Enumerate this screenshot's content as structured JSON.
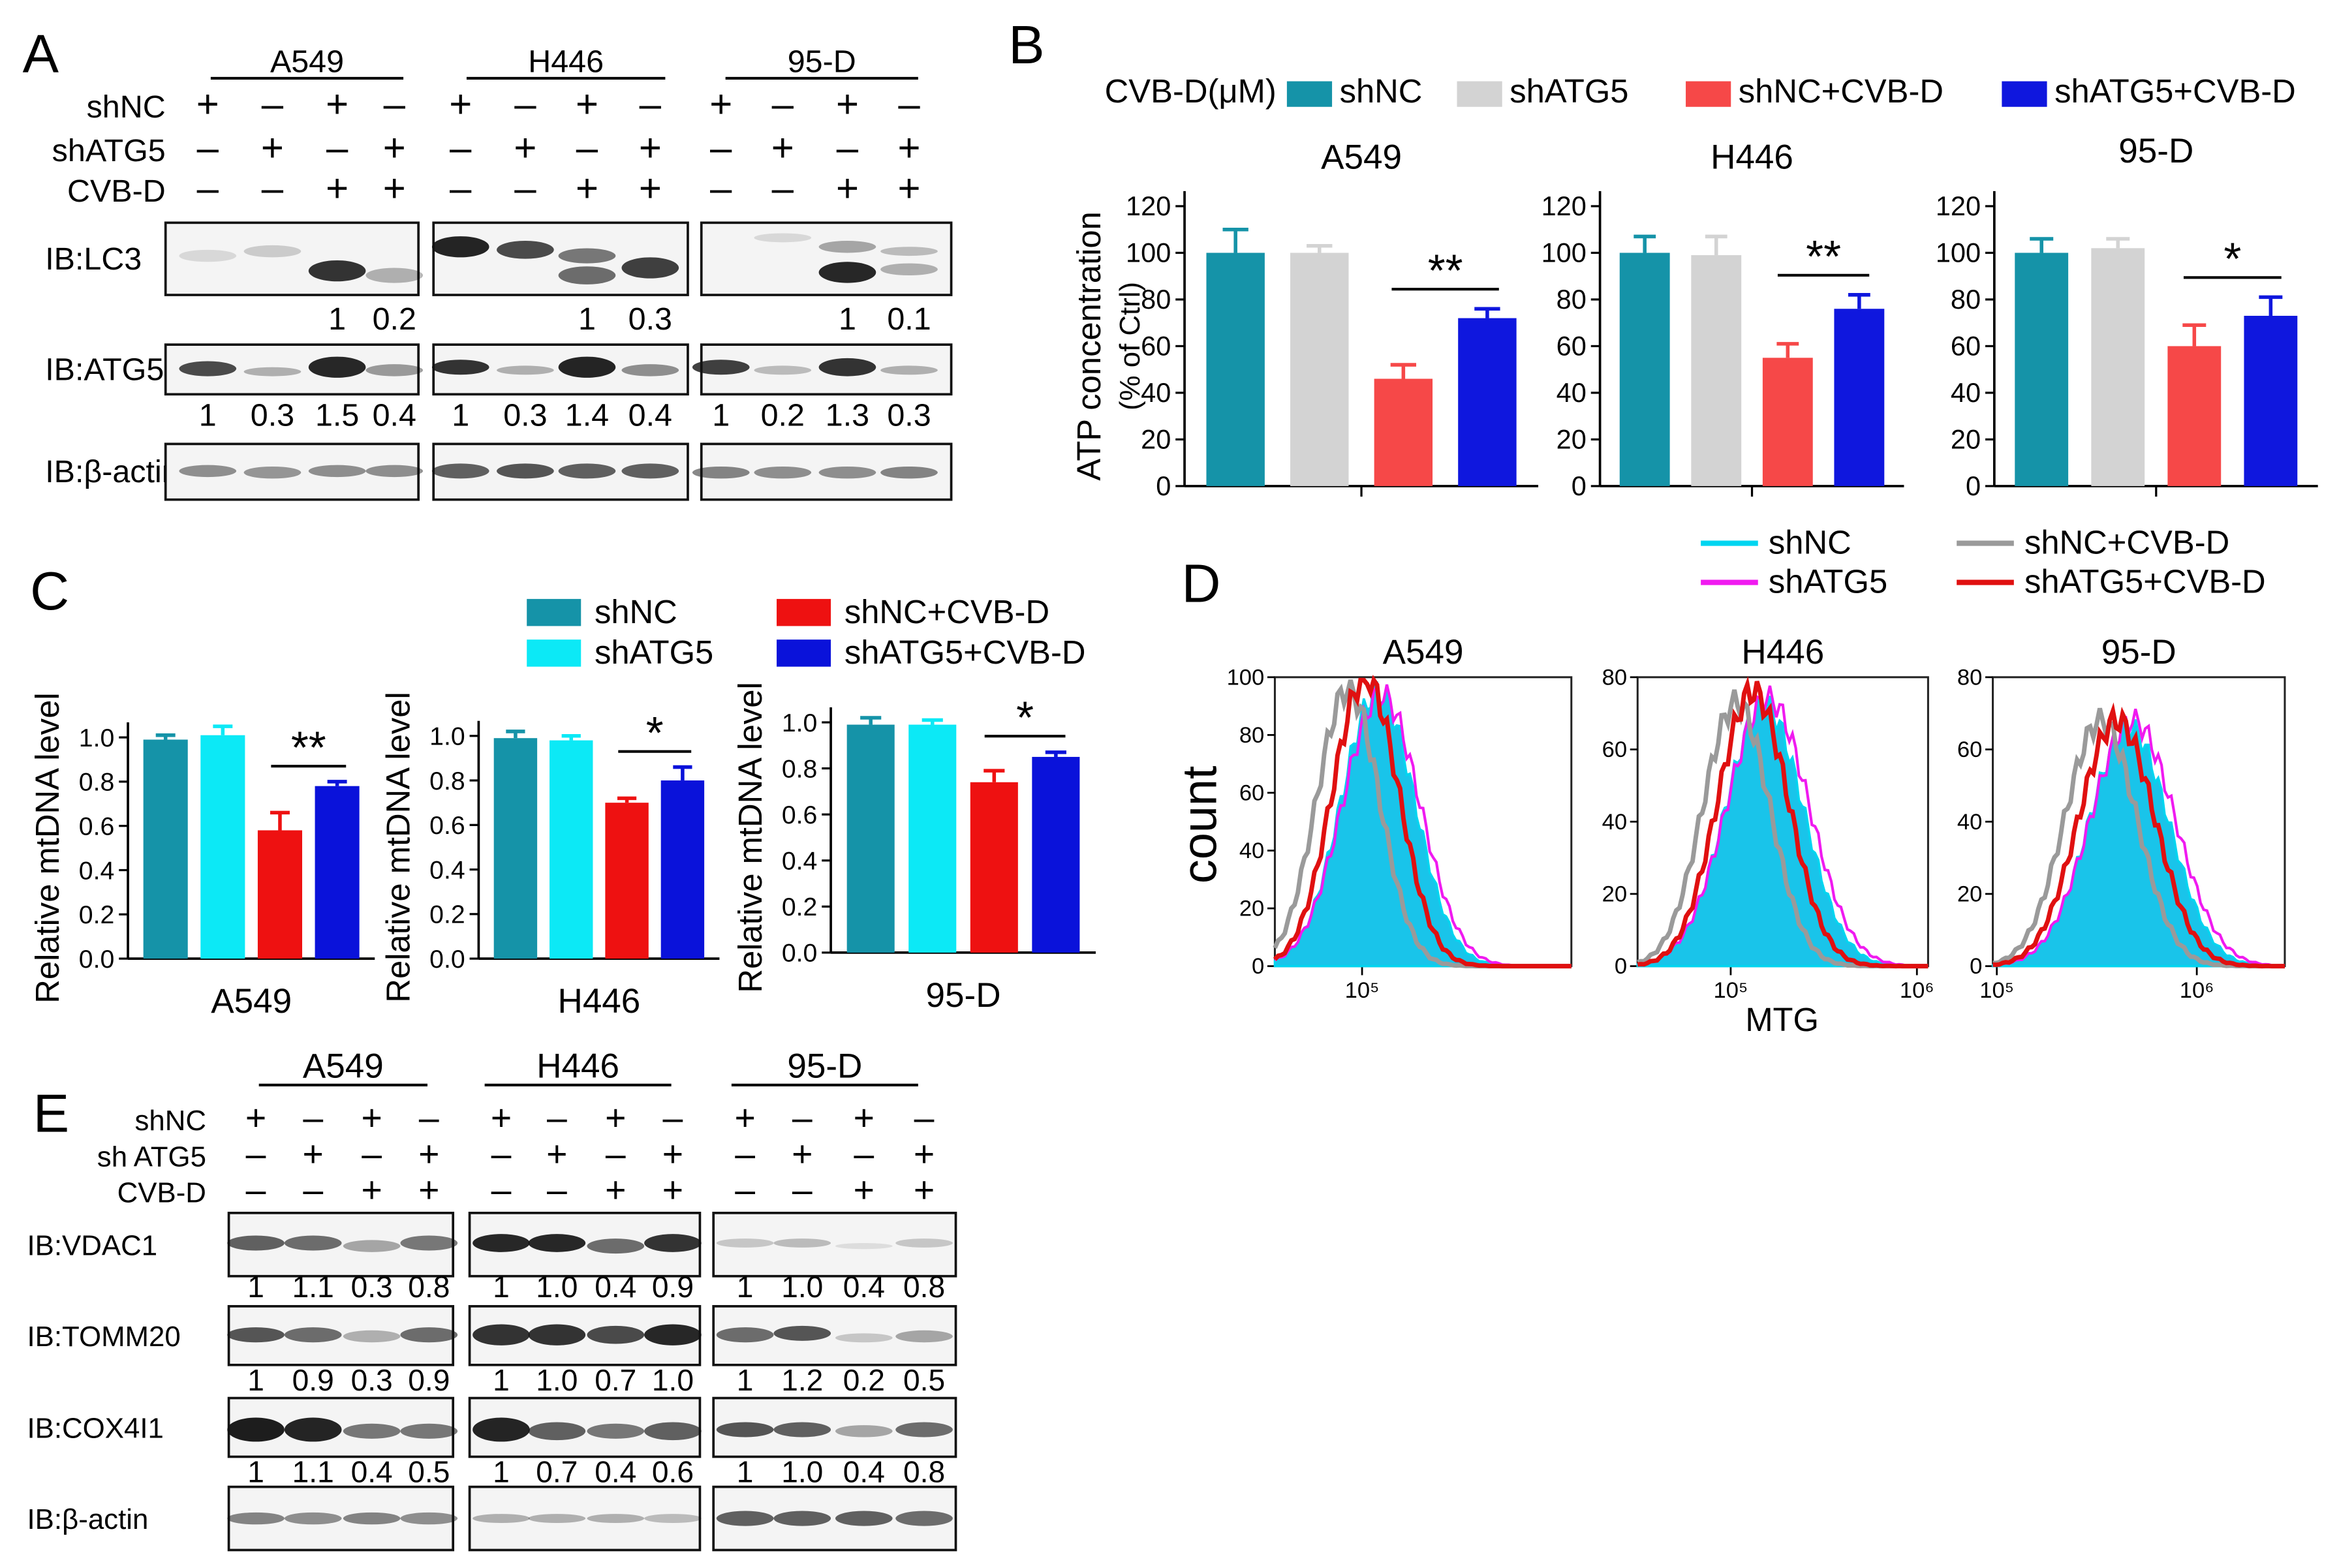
{
  "panels": {
    "A": {
      "letter": "A",
      "cells": [
        "A549",
        "H446",
        "95-D"
      ],
      "conditions": [
        {
          "label": "shNC",
          "signs": [
            "+",
            "–",
            "+",
            "–"
          ]
        },
        {
          "label": "shATG5",
          "signs": [
            "–",
            "+",
            "–",
            "+"
          ]
        },
        {
          "label": "CVB-D",
          "signs": [
            "–",
            "–",
            "+",
            "+"
          ]
        }
      ],
      "blots": [
        {
          "label": "IB:LC3",
          "values": [
            [
              "",
              "",
              "1",
              "0.2"
            ],
            [
              "",
              "",
              "1",
              "0.3"
            ],
            [
              "",
              "",
              "1",
              "0.1"
            ]
          ]
        },
        {
          "label": "IB:ATG5",
          "values": [
            [
              "1",
              "0.3",
              "1.5",
              "0.4"
            ],
            [
              "1",
              "0.3",
              "1.4",
              "0.4"
            ],
            [
              "1",
              "0.2",
              "1.3",
              "0.3"
            ]
          ]
        },
        {
          "label": "IB:β-actin",
          "values": [
            [
              "",
              "",
              "",
              ""
            ],
            [
              "",
              "",
              "",
              ""
            ],
            [
              "",
              "",
              "",
              ""
            ]
          ]
        }
      ]
    },
    "E": {
      "letter": "E",
      "cells": [
        "A549",
        "H446",
        "95-D"
      ],
      "conditions": [
        {
          "label": "shNC",
          "signs": [
            "+",
            "–",
            "+",
            "–"
          ]
        },
        {
          "label": "sh ATG5",
          "signs": [
            "–",
            "+",
            "–",
            "+"
          ]
        },
        {
          "label": "CVB-D",
          "signs": [
            "–",
            "–",
            "+",
            "+"
          ]
        }
      ],
      "blots": [
        {
          "label": "IB:VDAC1",
          "values": [
            [
              "1",
              "1.1",
              "0.3",
              "0.8"
            ],
            [
              "1",
              "1.0",
              "0.4",
              "0.9"
            ],
            [
              "1",
              "1.0",
              "0.4",
              "0.8"
            ]
          ]
        },
        {
          "label": "IB:TOMM20",
          "values": [
            [
              "1",
              "0.9",
              "0.3",
              "0.9"
            ],
            [
              "1",
              "1.0",
              "0.7",
              "1.0"
            ],
            [
              "1",
              "1.2",
              "0.2",
              "0.5"
            ]
          ]
        },
        {
          "label": "IB:COX4I1",
          "values": [
            [
              "1",
              "1.1",
              "0.4",
              "0.5"
            ],
            [
              "1",
              "0.7",
              "0.4",
              "0.6"
            ],
            [
              "1",
              "1.0",
              "0.4",
              "0.8"
            ]
          ]
        },
        {
          "label": "IB:β-actin",
          "values": [
            [
              "",
              "",
              "",
              ""
            ],
            [
              "",
              "",
              "",
              ""
            ],
            [
              "",
              "",
              "",
              ""
            ]
          ]
        }
      ]
    }
  },
  "chart_data": [
    {
      "panel": "B",
      "type": "bar",
      "title": "ATP concentration",
      "legend_prefix": "CVB-D(μM)",
      "series_names": [
        "shNC",
        "shATG5",
        "shNC+CVB-D",
        "shATG5+CVB-D"
      ],
      "colors": [
        "#1593a8",
        "#d3d3d3",
        "#f64848",
        "#0f17de"
      ],
      "ylabel": "ATP concentration",
      "ylabel2": "(% of Ctrl)",
      "ylim": [
        0,
        120
      ],
      "yticks": [
        "0",
        "20",
        "40",
        "60",
        "80",
        "100",
        "120"
      ],
      "subplots": [
        {
          "title": "A549",
          "values": [
            100,
            100,
            46,
            72
          ],
          "errors": [
            10,
            3,
            6,
            4
          ],
          "sig": "**"
        },
        {
          "title": "H446",
          "values": [
            100,
            99,
            55,
            76
          ],
          "errors": [
            7,
            8,
            6,
            6
          ],
          "sig": "**"
        },
        {
          "title": "95-D",
          "values": [
            100,
            102,
            60,
            73
          ],
          "errors": [
            6,
            4,
            9,
            8
          ],
          "sig": "*"
        }
      ]
    },
    {
      "panel": "C",
      "type": "bar",
      "series_names": [
        "shNC",
        "shATG5",
        "shNC+CVB-D",
        "shATG5+CVB-D"
      ],
      "colors": [
        "#1593a8",
        "#0ce9f6",
        "#ee1111",
        "#0a12da"
      ],
      "ylabel": "Relative mtDNA level",
      "ylim": [
        0,
        1.0
      ],
      "yticks": [
        "0.0",
        "0.2",
        "0.4",
        "0.6",
        "0.8",
        "1.0"
      ],
      "subplots": [
        {
          "xlabel": "A549",
          "values": [
            0.99,
            1.01,
            0.58,
            0.78
          ],
          "errors": [
            0.02,
            0.04,
            0.08,
            0.02
          ],
          "sig": "**"
        },
        {
          "xlabel": "H446",
          "values": [
            0.99,
            0.98,
            0.7,
            0.8
          ],
          "errors": [
            0.03,
            0.02,
            0.02,
            0.06
          ],
          "sig": "*"
        },
        {
          "xlabel": "95-D",
          "values": [
            0.99,
            0.99,
            0.74,
            0.85
          ],
          "errors": [
            0.03,
            0.02,
            0.05,
            0.02
          ],
          "sig": "*"
        }
      ]
    },
    {
      "panel": "D",
      "type": "area",
      "ylabel": "count",
      "xlabel": "MTG",
      "series_names": [
        "shNC",
        "shATG5",
        "shNC+CVB-D",
        "shATG5+CVB-D"
      ],
      "colors": [
        "#00d5f0",
        "#f01af0",
        "#9a9a9a",
        "#e01010"
      ],
      "subplots": [
        {
          "title": "A549",
          "ylim": [
            0,
            100
          ],
          "yticks": [
            "0",
            "20",
            "40",
            "60",
            "80",
            "100"
          ],
          "xticks": [
            "10⁵"
          ],
          "xlog": [
            4.5,
            6.2
          ],
          "xtick_pos": [
            5.0
          ],
          "peaks": {
            "shNC": [
              5.09,
              95,
              0.21
            ],
            "shATG5": [
              5.11,
              94,
              0.22
            ],
            "shNC+CVB-D": [
              4.92,
              96,
              0.18
            ],
            "shATG5+CVB-D": [
              5.02,
              100,
              0.19
            ]
          }
        },
        {
          "title": "H446",
          "ylim": [
            0,
            80
          ],
          "yticks": [
            "0",
            "20",
            "40",
            "60",
            "80"
          ],
          "xticks": [
            "10⁵",
            "10⁶"
          ],
          "xlog": [
            4.5,
            6.06
          ],
          "xtick_pos": [
            5.0,
            6.0
          ],
          "peaks": {
            "shNC": [
              5.18,
              72,
              0.21
            ],
            "shATG5": [
              5.2,
              74,
              0.22
            ],
            "shNC+CVB-D": [
              5.03,
              73,
              0.18
            ],
            "shATG5+CVB-D": [
              5.12,
              76,
              0.19
            ]
          }
        },
        {
          "title": "95-D",
          "ylim": [
            0,
            80
          ],
          "yticks": [
            "0",
            "20",
            "40",
            "60",
            "80"
          ],
          "xticks": [
            "10⁵",
            "10⁶"
          ],
          "xlog": [
            4.98,
            6.44
          ],
          "xtick_pos": [
            5.0,
            6.0
          ],
          "peaks": {
            "shNC": [
              5.66,
              66,
              0.2
            ],
            "shATG5": [
              5.68,
              68,
              0.21
            ],
            "shNC+CVB-D": [
              5.52,
              68,
              0.18
            ],
            "shATG5+CVB-D": [
              5.6,
              68,
              0.19
            ]
          }
        }
      ]
    }
  ]
}
